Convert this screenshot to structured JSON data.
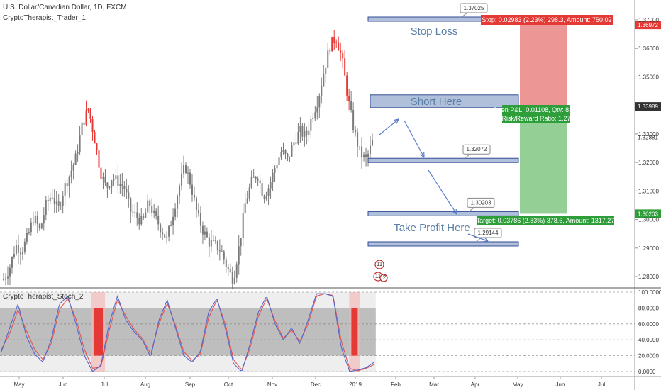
{
  "header": {
    "symbol": "U.S. Dollar/Canadian Dollar, 1D, FXCM",
    "indicator": "CryptoTherapist_Trader_1",
    "stoch": "CryptoTherapist_Stoch_2"
  },
  "chart_data": {
    "type": "candlestick",
    "x_labels": [
      "May",
      "Jun",
      "Jul",
      "Aug",
      "Sep",
      "Oct",
      "Nov",
      "Dec",
      "2019",
      "Feb",
      "Mar",
      "Apr",
      "May",
      "Jun",
      "Jul"
    ],
    "price_ticks": [
      "1.37000",
      "1.36000",
      "1.35000",
      "1.33000",
      "1.32000",
      "1.31000",
      "1.30000",
      "1.29000",
      "1.28000"
    ],
    "price_range": [
      1.275,
      1.374
    ],
    "stoch_ticks": [
      "100.0000",
      "80.0000",
      "60.0000",
      "40.0000",
      "20.0000",
      "0.0000"
    ],
    "stoch_range": [
      0,
      100
    ],
    "price_path": [
      1.279,
      1.283,
      1.291,
      1.289,
      1.294,
      1.301,
      1.296,
      1.305,
      1.309,
      1.303,
      1.311,
      1.316,
      1.322,
      1.333,
      1.339,
      1.329,
      1.317,
      1.311,
      1.315,
      1.313,
      1.311,
      1.303,
      1.301,
      1.299,
      1.306,
      1.301,
      1.297,
      1.293,
      1.302,
      1.311,
      1.319,
      1.312,
      1.302,
      1.296,
      1.292,
      1.291,
      1.289,
      1.283,
      1.279,
      1.291,
      1.306,
      1.313,
      1.316,
      1.308,
      1.312,
      1.319,
      1.324,
      1.321,
      1.327,
      1.331,
      1.329,
      1.336,
      1.342,
      1.352,
      1.361,
      1.364,
      1.356,
      1.342,
      1.331,
      1.323,
      1.321,
      1.327
    ],
    "red_candle_zones": [
      [
        0.22,
        0.27
      ],
      [
        0.89,
        0.94
      ]
    ],
    "stoch_k_path": [
      25,
      55,
      85,
      45,
      22,
      12,
      40,
      85,
      95,
      60,
      20,
      0,
      8,
      60,
      95,
      65,
      50,
      40,
      18,
      65,
      90,
      55,
      20,
      12,
      25,
      75,
      92,
      55,
      10,
      0,
      35,
      75,
      95,
      60,
      40,
      55,
      35,
      65,
      98,
      98,
      95,
      30,
      0,
      2,
      5,
      12
    ],
    "stoch_d_path": [
      28,
      48,
      78,
      52,
      28,
      15,
      35,
      78,
      92,
      66,
      28,
      4,
      6,
      52,
      90,
      70,
      53,
      42,
      22,
      60,
      86,
      58,
      25,
      14,
      22,
      68,
      90,
      60,
      15,
      2,
      30,
      70,
      92,
      64,
      42,
      52,
      38,
      60,
      95,
      98,
      96,
      38,
      4,
      1,
      4,
      9
    ],
    "stoch_red_zones": [
      [
        0.247,
        0.272
      ],
      [
        0.938,
        0.955
      ]
    ],
    "zones": [
      {
        "label": "Stop Loss",
        "price": 1.37025,
        "box_label": "1.37025"
      },
      {
        "label": "Short Here",
        "price_top": 1.3437,
        "price_bottom": 1.3392
      },
      {
        "label": "",
        "price": 1.32072,
        "box_label": "1.32072"
      },
      {
        "label": "Take Profit Here",
        "price": 1.30203,
        "box_label": "1.30203"
      },
      {
        "label": "",
        "price": 1.29144,
        "box_label": "1.29144"
      }
    ],
    "position": {
      "entry": 1.33989,
      "stop": 1.36972,
      "target": 1.30203,
      "stop_text": "Stop: 0.02983 (2.23%) 298.3, Amount: 750.02",
      "open_text_1": "Open P&L: 0.01108, Qty: 8380",
      "open_text_2": "Risk/Reward Ratio: 1.27",
      "target_text": "Target: 0.03786 (2.83%) 378.6, Amount: 1317.27",
      "entry_label": "1.33989",
      "stop_label": "1.36972",
      "target_label": "1.30203",
      "mid_label": "1.32881"
    },
    "events": [
      {
        "label": "11"
      },
      {
        "label": "11"
      },
      {
        "label": "2"
      }
    ],
    "colors": {
      "up": "#7a7a7a",
      "down": "#e53935",
      "stop_zone": "#e57373",
      "target_zone": "#81c784",
      "zone_border": "#1e3a8a",
      "zone_fill": "#a9bad6",
      "stoch_k": "#5566cc",
      "stoch_d": "#e05555",
      "stoch_band": "#888888"
    }
  }
}
